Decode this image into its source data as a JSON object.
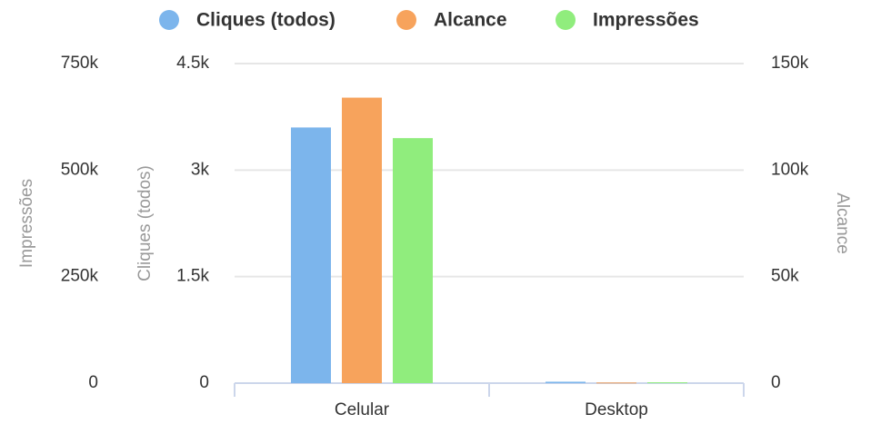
{
  "chart_data": {
    "type": "bar",
    "categories": [
      "Celular",
      "Desktop"
    ],
    "series": [
      {
        "name": "Cliques (todos)",
        "color": "#7cb5ec",
        "axis": "y",
        "values": [
          3600,
          20
        ]
      },
      {
        "name": "Alcance",
        "color": "#f7a35c",
        "axis": "y2",
        "values": [
          134000,
          300
        ]
      },
      {
        "name": "Impressões",
        "color": "#90ed7d",
        "axis": "y3",
        "values": [
          575000,
          2000
        ]
      }
    ],
    "ylabel": "Cliques (todos)",
    "ylim": [
      0,
      4500
    ],
    "yticks": [
      0,
      {
        "value": 1500,
        "label": "1.5k"
      },
      {
        "value": 3000,
        "label": "3k"
      },
      {
        "value": 4500,
        "label": "4.5k"
      }
    ],
    "y2label": "Alcance",
    "y2lim": [
      0,
      150000
    ],
    "y2ticks": [
      0,
      {
        "value": 50000,
        "label": "50k"
      },
      {
        "value": 100000,
        "label": "100k"
      },
      {
        "value": 150000,
        "label": "150k"
      }
    ],
    "y3label": "Impressões",
    "y3lim": [
      0,
      750000
    ],
    "y3ticks": [
      0,
      {
        "value": 250000,
        "label": "250k"
      },
      {
        "value": 500000,
        "label": "500k"
      },
      {
        "value": 750000,
        "label": "750k"
      }
    ],
    "grid": true,
    "legend": "top"
  }
}
